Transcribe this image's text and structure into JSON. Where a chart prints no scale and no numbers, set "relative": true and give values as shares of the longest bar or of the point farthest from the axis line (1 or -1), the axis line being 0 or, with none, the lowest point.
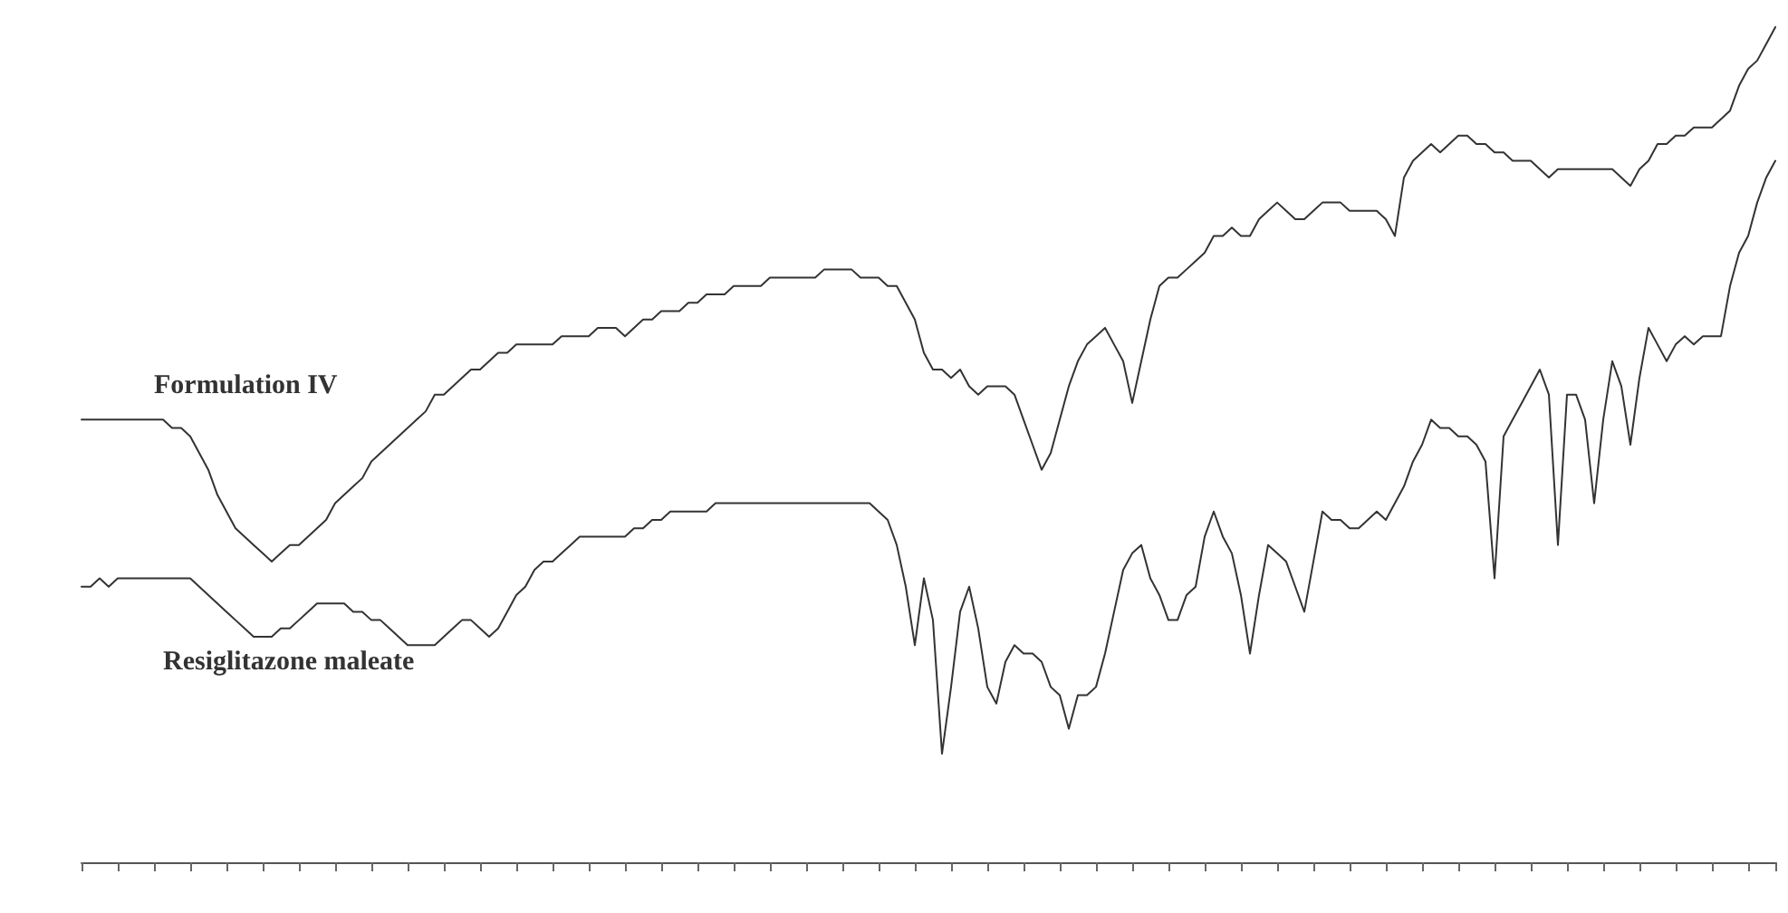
{
  "chart_data": {
    "type": "line",
    "relative": true,
    "grid": false,
    "legend": false,
    "line_style": "solid",
    "categories": [
      null,
      null,
      null,
      null,
      null,
      null,
      null,
      null,
      null,
      null,
      null,
      null,
      null,
      null,
      null,
      null,
      null,
      null,
      null,
      null,
      null,
      null,
      null,
      null,
      null,
      null,
      null,
      null,
      null,
      null,
      null,
      null,
      null,
      null,
      null,
      null,
      null,
      null,
      null,
      null,
      null,
      null,
      null,
      null,
      null,
      null,
      null,
      null,
      null,
      null,
      null,
      null,
      null,
      null,
      null,
      null,
      null,
      null,
      null,
      null,
      null,
      null,
      null,
      null,
      null,
      null,
      null,
      null,
      null,
      null,
      null,
      null,
      null,
      null,
      null,
      null,
      null,
      null,
      null,
      null,
      null,
      null,
      null,
      null,
      null,
      null,
      null,
      null,
      null,
      null,
      null,
      null,
      null,
      null,
      null,
      null,
      null,
      null,
      null,
      null,
      null,
      null,
      null,
      null,
      null,
      null,
      null,
      null,
      null,
      null,
      null,
      null,
      null,
      null,
      null,
      null,
      null,
      null,
      null,
      null,
      null,
      null,
      null,
      null,
      null,
      null,
      null,
      null,
      null,
      null,
      null,
      null,
      null,
      null,
      null,
      null,
      null,
      null,
      null,
      null,
      null,
      null,
      null,
      null,
      null,
      null,
      null,
      null,
      null,
      null,
      null,
      null,
      null,
      null,
      null,
      null,
      null,
      null,
      null,
      null,
      null,
      null,
      null,
      null,
      null,
      null,
      null,
      null,
      null,
      null,
      null,
      null,
      null,
      null,
      null,
      null,
      null,
      null,
      null,
      null,
      null,
      null,
      null,
      null,
      null,
      null,
      null,
      null
    ],
    "series": [
      {
        "name": "Formulation IV",
        "color": "#333333",
        "values": [
          0.53,
          0.53,
          0.53,
          0.53,
          0.53,
          0.53,
          0.53,
          0.53,
          0.53,
          0.53,
          0.52,
          0.52,
          0.51,
          0.49,
          0.47,
          0.44,
          0.42,
          0.4,
          0.39,
          0.38,
          0.37,
          0.36,
          0.37,
          0.38,
          0.38,
          0.39,
          0.4,
          0.41,
          0.43,
          0.44,
          0.45,
          0.46,
          0.48,
          0.49,
          0.5,
          0.51,
          0.52,
          0.53,
          0.54,
          0.56,
          0.56,
          0.57,
          0.58,
          0.59,
          0.59,
          0.6,
          0.61,
          0.61,
          0.62,
          0.62,
          0.62,
          0.62,
          0.62,
          0.63,
          0.63,
          0.63,
          0.63,
          0.64,
          0.64,
          0.64,
          0.63,
          0.64,
          0.65,
          0.65,
          0.66,
          0.66,
          0.66,
          0.67,
          0.67,
          0.68,
          0.68,
          0.68,
          0.69,
          0.69,
          0.69,
          0.69,
          0.7,
          0.7,
          0.7,
          0.7,
          0.7,
          0.7,
          0.71,
          0.71,
          0.71,
          0.71,
          0.7,
          0.7,
          0.7,
          0.69,
          0.69,
          0.67,
          0.65,
          0.61,
          0.59,
          0.59,
          0.58,
          0.59,
          0.57,
          0.56,
          0.57,
          0.57,
          0.57,
          0.56,
          0.53,
          0.5,
          0.47,
          0.49,
          0.53,
          0.57,
          0.6,
          0.62,
          0.63,
          0.64,
          0.62,
          0.6,
          0.55,
          0.6,
          0.65,
          0.69,
          0.7,
          0.7,
          0.71,
          0.72,
          0.73,
          0.75,
          0.75,
          0.76,
          0.75,
          0.75,
          0.77,
          0.78,
          0.79,
          0.78,
          0.77,
          0.77,
          0.78,
          0.79,
          0.79,
          0.79,
          0.78,
          0.78,
          0.78,
          0.78,
          0.77,
          0.75,
          0.82,
          0.84,
          0.85,
          0.86,
          0.85,
          0.86,
          0.87,
          0.87,
          0.86,
          0.86,
          0.85,
          0.85,
          0.84,
          0.84,
          0.84,
          0.83,
          0.82,
          0.83,
          0.83,
          0.83,
          0.83,
          0.83,
          0.83,
          0.83,
          0.82,
          0.81,
          0.83,
          0.84,
          0.86,
          0.86,
          0.87,
          0.87,
          0.88,
          0.88,
          0.88,
          0.89,
          0.9,
          0.93,
          0.95,
          0.96,
          0.98,
          1
        ]
      },
      {
        "name": "Resiglitazone maleate",
        "color": "#333333",
        "values": [
          0.33,
          0.33,
          0.34,
          0.33,
          0.34,
          0.34,
          0.34,
          0.34,
          0.34,
          0.34,
          0.34,
          0.34,
          0.34,
          0.33,
          0.32,
          0.31,
          0.3,
          0.29,
          0.28,
          0.27,
          0.27,
          0.27,
          0.28,
          0.28,
          0.29,
          0.3,
          0.31,
          0.31,
          0.31,
          0.31,
          0.3,
          0.3,
          0.29,
          0.29,
          0.28,
          0.27,
          0.26,
          0.26,
          0.26,
          0.26,
          0.27,
          0.28,
          0.29,
          0.29,
          0.28,
          0.27,
          0.28,
          0.3,
          0.32,
          0.33,
          0.35,
          0.36,
          0.36,
          0.37,
          0.38,
          0.39,
          0.39,
          0.39,
          0.39,
          0.39,
          0.39,
          0.4,
          0.4,
          0.41,
          0.41,
          0.42,
          0.42,
          0.42,
          0.42,
          0.42,
          0.43,
          0.43,
          0.43,
          0.43,
          0.43,
          0.43,
          0.43,
          0.43,
          0.43,
          0.43,
          0.43,
          0.43,
          0.43,
          0.43,
          0.43,
          0.43,
          0.43,
          0.43,
          0.42,
          0.41,
          0.38,
          0.33,
          0.26,
          0.34,
          0.29,
          0.13,
          0.21,
          0.3,
          0.33,
          0.28,
          0.21,
          0.19,
          0.24,
          0.26,
          0.25,
          0.25,
          0.24,
          0.21,
          0.2,
          0.16,
          0.2,
          0.2,
          0.21,
          0.25,
          0.3,
          0.35,
          0.37,
          0.38,
          0.34,
          0.32,
          0.29,
          0.29,
          0.32,
          0.33,
          0.39,
          0.42,
          0.39,
          0.37,
          0.32,
          0.25,
          0.32,
          0.38,
          0.37,
          0.36,
          0.33,
          0.3,
          0.36,
          0.42,
          0.41,
          0.41,
          0.4,
          0.4,
          0.41,
          0.42,
          0.41,
          0.43,
          0.45,
          0.48,
          0.5,
          0.53,
          0.52,
          0.52,
          0.51,
          0.51,
          0.5,
          0.48,
          0.34,
          0.51,
          0.53,
          0.55,
          0.57,
          0.59,
          0.56,
          0.38,
          0.56,
          0.56,
          0.53,
          0.43,
          0.53,
          0.6,
          0.57,
          0.5,
          0.58,
          0.64,
          0.62,
          0.6,
          0.62,
          0.63,
          0.62,
          0.63,
          0.63,
          0.63,
          0.69,
          0.73,
          0.75,
          0.79,
          0.82,
          0.84
        ]
      }
    ]
  }
}
